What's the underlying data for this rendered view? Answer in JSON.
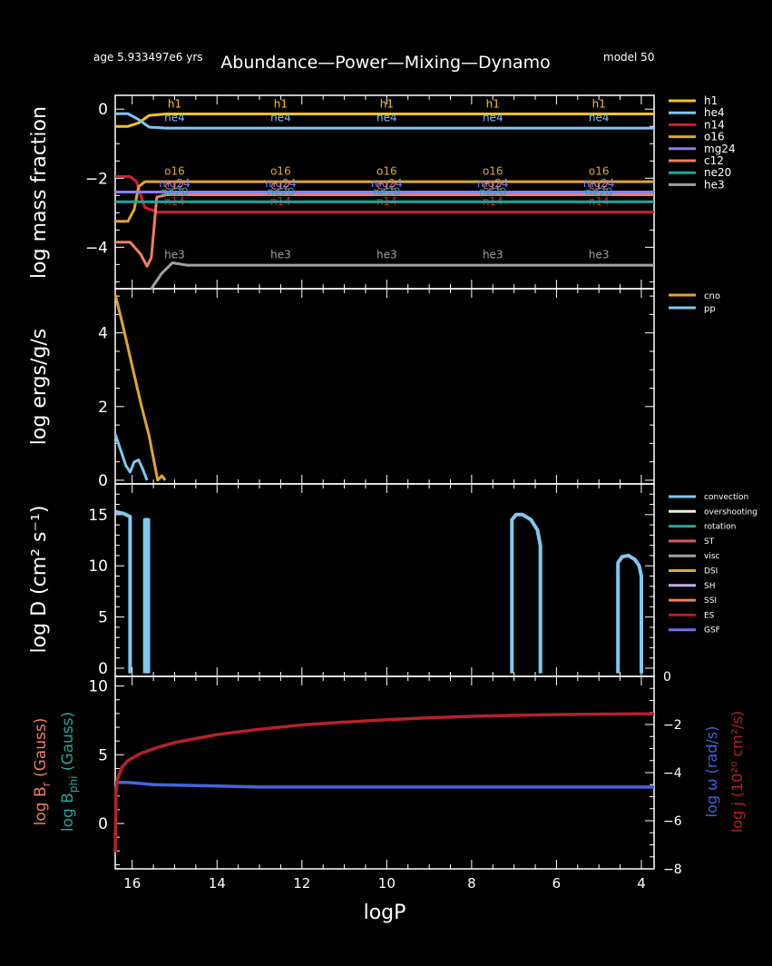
{
  "header": {
    "age": "age 5.933497e6 yrs",
    "title": "Abundance—Power—Mixing—Dynamo",
    "model": "model 50"
  },
  "xaxis": {
    "label": "logP",
    "ticks": [
      "16",
      "14",
      "12",
      "10",
      "8",
      "6",
      "4"
    ]
  },
  "colors": {
    "h1": "#f5c21b",
    "he4": "#7ec8f0",
    "n14": "#d21e2e",
    "o16": "#dfa72a",
    "mg24": "#8a7ef0",
    "c12": "#f07e5e",
    "ne20": "#1fa79a",
    "he3": "#a0a0a0",
    "cno": "#dfa72a",
    "pp": "#7ec8f0",
    "convection": "#7ec8f0",
    "overshooting": "#f0f0d8",
    "rotation": "#1fa79a",
    "ST": "#e05858",
    "visc": "#a0a0a0",
    "DSI": "#dfa72a",
    "SH": "#c8a8f0",
    "SSI": "#f07e5e",
    "ES": "#b02020",
    "GSF": "#7070f0",
    "Br": "#f07e5e",
    "Bphi": "#1fa79a",
    "omega": "#4464e0",
    "j": "#b82028"
  },
  "chart_data": [
    {
      "type": "line",
      "panel": "abundance",
      "ylabel": "log mass fraction",
      "yticks": [
        "0",
        "−2",
        "−4"
      ],
      "ylim": [
        -5.2,
        0.4
      ],
      "xlim": [
        16.4,
        3.7
      ],
      "legend": [
        "h1",
        "he4",
        "n14",
        "o16",
        "mg24",
        "c12",
        "ne20",
        "he3"
      ],
      "curve_label_x": [
        15.0,
        12.5,
        10.0,
        7.5,
        5.0
      ],
      "series": [
        {
          "name": "h1",
          "points": [
            [
              16.4,
              -0.5
            ],
            [
              16.1,
              -0.5
            ],
            [
              15.85,
              -0.4
            ],
            [
              15.6,
              -0.18
            ],
            [
              15.2,
              -0.14
            ],
            [
              3.7,
              -0.14
            ]
          ],
          "label_y": 0.05
        },
        {
          "name": "he4",
          "points": [
            [
              16.4,
              -0.13
            ],
            [
              16.1,
              -0.13
            ],
            [
              15.85,
              -0.3
            ],
            [
              15.6,
              -0.52
            ],
            [
              15.2,
              -0.55
            ],
            [
              3.7,
              -0.55
            ]
          ],
          "label_y": -0.35
        },
        {
          "name": "n14",
          "points": [
            [
              16.4,
              -1.95
            ],
            [
              16.05,
              -1.95
            ],
            [
              15.9,
              -2.1
            ],
            [
              15.7,
              -2.85
            ],
            [
              15.4,
              -2.98
            ],
            [
              3.7,
              -2.98
            ]
          ],
          "label_y": -2.78
        },
        {
          "name": "o16",
          "points": [
            [
              16.4,
              -3.25
            ],
            [
              16.1,
              -3.25
            ],
            [
              15.95,
              -2.9
            ],
            [
              15.85,
              -2.25
            ],
            [
              15.7,
              -2.1
            ],
            [
              3.7,
              -2.1
            ]
          ],
          "label_y": -1.9
        },
        {
          "name": "mg24",
          "points": [
            [
              16.4,
              -2.4
            ],
            [
              3.7,
              -2.4
            ]
          ],
          "label_y": -2.25
        },
        {
          "name": "c12",
          "points": [
            [
              16.4,
              -3.85
            ],
            [
              16.05,
              -3.85
            ],
            [
              15.8,
              -4.2
            ],
            [
              15.65,
              -4.55
            ],
            [
              15.55,
              -4.3
            ],
            [
              15.42,
              -2.55
            ],
            [
              15.2,
              -2.48
            ],
            [
              3.7,
              -2.48
            ]
          ],
          "label_y": -2.32
        },
        {
          "name": "ne20",
          "points": [
            [
              16.4,
              -2.68
            ],
            [
              3.7,
              -2.68
            ]
          ],
          "label_y": -2.5
        },
        {
          "name": "he3",
          "points": [
            [
              15.55,
              -5.2
            ],
            [
              15.3,
              -4.75
            ],
            [
              15.05,
              -4.45
            ],
            [
              14.7,
              -4.52
            ],
            [
              3.7,
              -4.52
            ]
          ],
          "label_y": -4.32
        }
      ]
    },
    {
      "type": "line",
      "panel": "power",
      "ylabel": "log ergs/g/s",
      "yticks": [
        "0",
        "2",
        "4"
      ],
      "ylim": [
        -0.1,
        5.2
      ],
      "xlim": [
        16.4,
        3.7
      ],
      "legend": [
        "cno",
        "pp"
      ],
      "series": [
        {
          "name": "cno",
          "points": [
            [
              16.4,
              5.05
            ],
            [
              16.2,
              4.1
            ],
            [
              16.0,
              3.1
            ],
            [
              15.8,
              2.1
            ],
            [
              15.6,
              1.2
            ],
            [
              15.5,
              0.6
            ],
            [
              15.4,
              0.0
            ],
            [
              15.3,
              0.12
            ],
            [
              15.22,
              0.0
            ]
          ]
        },
        {
          "name": "pp",
          "points": [
            [
              16.4,
              1.25
            ],
            [
              16.25,
              0.75
            ],
            [
              16.15,
              0.4
            ],
            [
              16.05,
              0.22
            ],
            [
              15.95,
              0.5
            ],
            [
              15.85,
              0.55
            ],
            [
              15.75,
              0.3
            ],
            [
              15.65,
              0.0
            ]
          ]
        }
      ]
    },
    {
      "type": "line",
      "panel": "mixing",
      "ylabel": "log D (cm² s⁻¹)",
      "yticks": [
        "0",
        "5",
        "10",
        "15"
      ],
      "ylim": [
        -0.8,
        18
      ],
      "xlim": [
        16.4,
        3.7
      ],
      "legend": [
        "convection",
        "overshooting",
        "rotation",
        "ST",
        "visc",
        "DSI",
        "SH",
        "SSI",
        "ES",
        "GSF"
      ],
      "series": [
        {
          "name": "convection",
          "segments": [
            [
              [
                16.4,
                15.3
              ],
              [
                16.2,
                15.1
              ],
              [
                16.05,
                14.8
              ],
              [
                16.05,
                -0.5
              ]
            ],
            [
              [
                15.7,
                -0.5
              ],
              [
                15.7,
                14.5
              ],
              [
                15.62,
                14.5
              ],
              [
                15.62,
                -0.5
              ]
            ],
            [
              [
                7.05,
                -0.5
              ],
              [
                7.05,
                14.5
              ],
              [
                6.95,
                15.0
              ],
              [
                6.8,
                15.0
              ],
              [
                6.6,
                14.5
              ],
              [
                6.45,
                13.5
              ],
              [
                6.38,
                12.0
              ],
              [
                6.38,
                -0.5
              ]
            ],
            [
              [
                4.55,
                -0.5
              ],
              [
                4.55,
                10.3
              ],
              [
                4.45,
                10.9
              ],
              [
                4.3,
                11.0
              ],
              [
                4.15,
                10.6
              ],
              [
                4.05,
                10.0
              ],
              [
                4.0,
                9.0
              ],
              [
                4.0,
                -0.5
              ]
            ]
          ]
        }
      ]
    },
    {
      "type": "line",
      "panel": "dynamo",
      "ylabel_left_1": "log B",
      "ylabel_left_1_sub": "r",
      "ylabel_left_1_unit": " (Gauss)",
      "ylabel_left_2": "log B",
      "ylabel_left_2_sub": "phi",
      "ylabel_left_2_unit": " (Gauss)",
      "ylabel_right_1": "log ω  (rad/s)",
      "ylabel_right_2": "log j (10²⁰ cm²/s)",
      "yticks_left": [
        "0",
        "5",
        "10"
      ],
      "yticks_right": [
        "0",
        "−2",
        "−4",
        "−6",
        "−8"
      ],
      "ylim_left": [
        -3.3,
        10.7
      ],
      "ylim_right": [
        -8,
        0
      ],
      "xlim": [
        16.4,
        3.7
      ],
      "series": [
        {
          "name": "omega",
          "axis": "right",
          "points": [
            [
              16.4,
              -4.4
            ],
            [
              16.0,
              -4.42
            ],
            [
              15.5,
              -4.5
            ],
            [
              15,
              -4.52
            ],
            [
              14,
              -4.56
            ],
            [
              13,
              -4.6
            ],
            [
              12,
              -4.6
            ],
            [
              10,
              -4.6
            ],
            [
              8,
              -4.6
            ],
            [
              6,
              -4.6
            ],
            [
              3.7,
              -4.6
            ]
          ]
        },
        {
          "name": "j",
          "axis": "right",
          "points": [
            [
              16.4,
              -7.3
            ],
            [
              16.38,
              -4.8
            ],
            [
              16.35,
              -4.3
            ],
            [
              16.25,
              -3.8
            ],
            [
              16.1,
              -3.5
            ],
            [
              15.8,
              -3.2
            ],
            [
              15.4,
              -2.95
            ],
            [
              15,
              -2.75
            ],
            [
              14,
              -2.42
            ],
            [
              13,
              -2.2
            ],
            [
              12,
              -2.02
            ],
            [
              11,
              -1.9
            ],
            [
              10,
              -1.8
            ],
            [
              9,
              -1.72
            ],
            [
              8,
              -1.66
            ],
            [
              7,
              -1.62
            ],
            [
              6,
              -1.59
            ],
            [
              5,
              -1.57
            ],
            [
              4,
              -1.56
            ],
            [
              3.7,
              -1.56
            ]
          ]
        }
      ]
    }
  ]
}
